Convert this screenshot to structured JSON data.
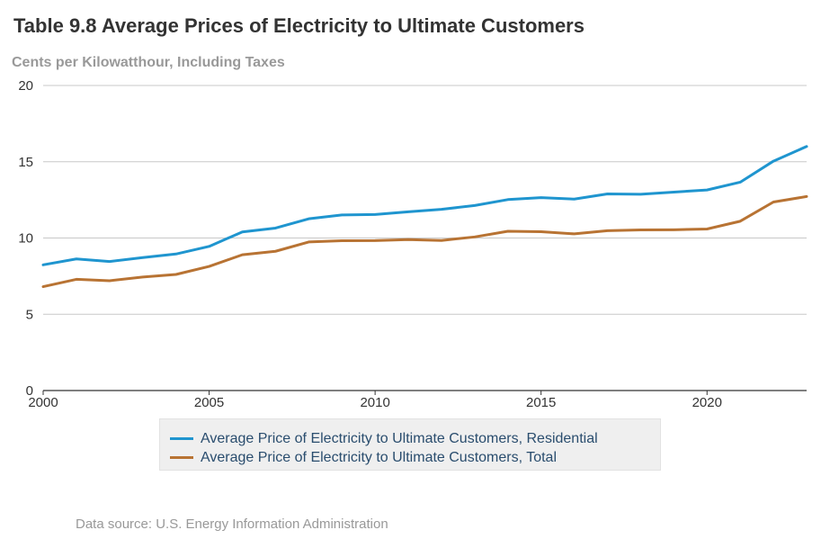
{
  "chart_data": {
    "type": "line",
    "title": "Table 9.8 Average Prices of Electricity to Ultimate Customers",
    "subtitle": "Cents per Kilowatthour, Including Taxes",
    "x": [
      2000,
      2001,
      2002,
      2003,
      2004,
      2005,
      2006,
      2007,
      2008,
      2009,
      2010,
      2011,
      2012,
      2013,
      2014,
      2015,
      2016,
      2017,
      2018,
      2019,
      2020,
      2021,
      2022,
      2023
    ],
    "xlim": [
      2000,
      2023
    ],
    "ylim": [
      0,
      20
    ],
    "x_ticks": [
      "2000",
      "2005",
      "2010",
      "2015",
      "2020"
    ],
    "y_ticks": [
      "0",
      "5",
      "10",
      "15",
      "20"
    ],
    "grid": true,
    "legend_position": "bottom",
    "series": [
      {
        "name": "Average Price of Electricity to Ultimate Customers, Residential",
        "color": "#1f95cf",
        "values": [
          8.24,
          8.63,
          8.46,
          8.72,
          8.95,
          9.45,
          10.4,
          10.65,
          11.26,
          11.51,
          11.54,
          11.72,
          11.88,
          12.13,
          12.52,
          12.65,
          12.55,
          12.89,
          12.87,
          13.01,
          13.15,
          13.66,
          15.04,
          16.0
        ]
      },
      {
        "name": "Average Price of Electricity to Ultimate Customers, Total",
        "color": "#b87333",
        "values": [
          6.81,
          7.29,
          7.2,
          7.44,
          7.61,
          8.14,
          8.9,
          9.13,
          9.74,
          9.82,
          9.83,
          9.9,
          9.84,
          10.07,
          10.44,
          10.41,
          10.27,
          10.48,
          10.53,
          10.54,
          10.59,
          11.1,
          12.36,
          12.72
        ]
      }
    ]
  },
  "footer": {
    "source": "Data source: U.S. Energy Information Administration"
  }
}
